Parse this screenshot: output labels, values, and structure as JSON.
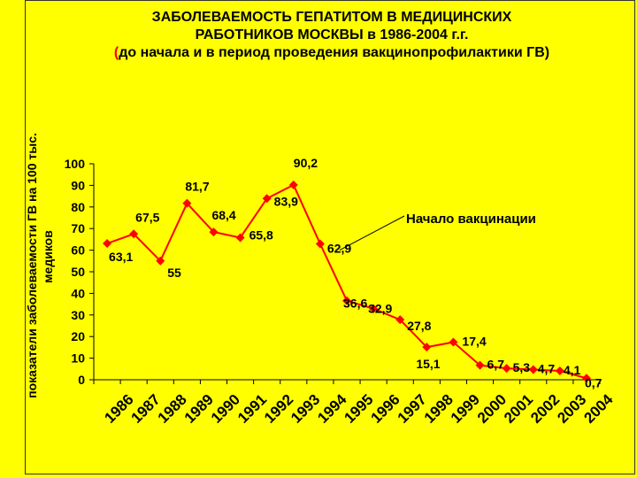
{
  "title": {
    "line1": "ЗАБОЛЕВАЕМОСТЬ ГЕПАТИТОМ В   МЕДИЦИНСКИХ",
    "line2": "РАБОТНИКОВ МОСКВЫ в 1986-2004 г.г.",
    "line3_paren": "(",
    "line3_text": "до начала и в период проведения вакцинопрофилактики ГВ)"
  },
  "colors": {
    "background": "#ffff00",
    "series": "#ff0000",
    "text": "#000000"
  },
  "chart_data": {
    "type": "line",
    "ylabel_line1": "показатели заболеваемости ГВ на 100 тыс.",
    "ylabel_line2": "медиков",
    "xlabel": "",
    "ylim": [
      0,
      100
    ],
    "y_ticks": [
      "0",
      "10",
      "20",
      "30",
      "40",
      "50",
      "60",
      "70",
      "80",
      "90",
      "100"
    ],
    "grid": false,
    "categories": [
      "1986",
      "1987",
      "1988",
      "1989",
      "1990",
      "1991",
      "1992",
      "1993",
      "1994",
      "1995",
      "1996",
      "1997",
      "1998",
      "1999",
      "2000",
      "2001",
      "2002",
      "2003",
      "2004"
    ],
    "series": [
      {
        "values": [
          63.1,
          67.5,
          55,
          81.7,
          68.4,
          65.8,
          83.9,
          90.2,
          62.9,
          36.6,
          32.9,
          27.8,
          15.1,
          17.4,
          6.7,
          5.3,
          4.7,
          4.1,
          0.7
        ]
      }
    ],
    "data_labels": [
      "63,1",
      "67,5",
      "55",
      "81,7",
      "68,4",
      "65,8",
      "83,9",
      "90,2",
      "62,9",
      "36,6",
      "32,9",
      "27,8",
      "15,1",
      "17,4",
      "6,7",
      "5,3",
      "4,7",
      "4,1",
      "0,7"
    ],
    "annotation": "Начало вакцинации"
  }
}
